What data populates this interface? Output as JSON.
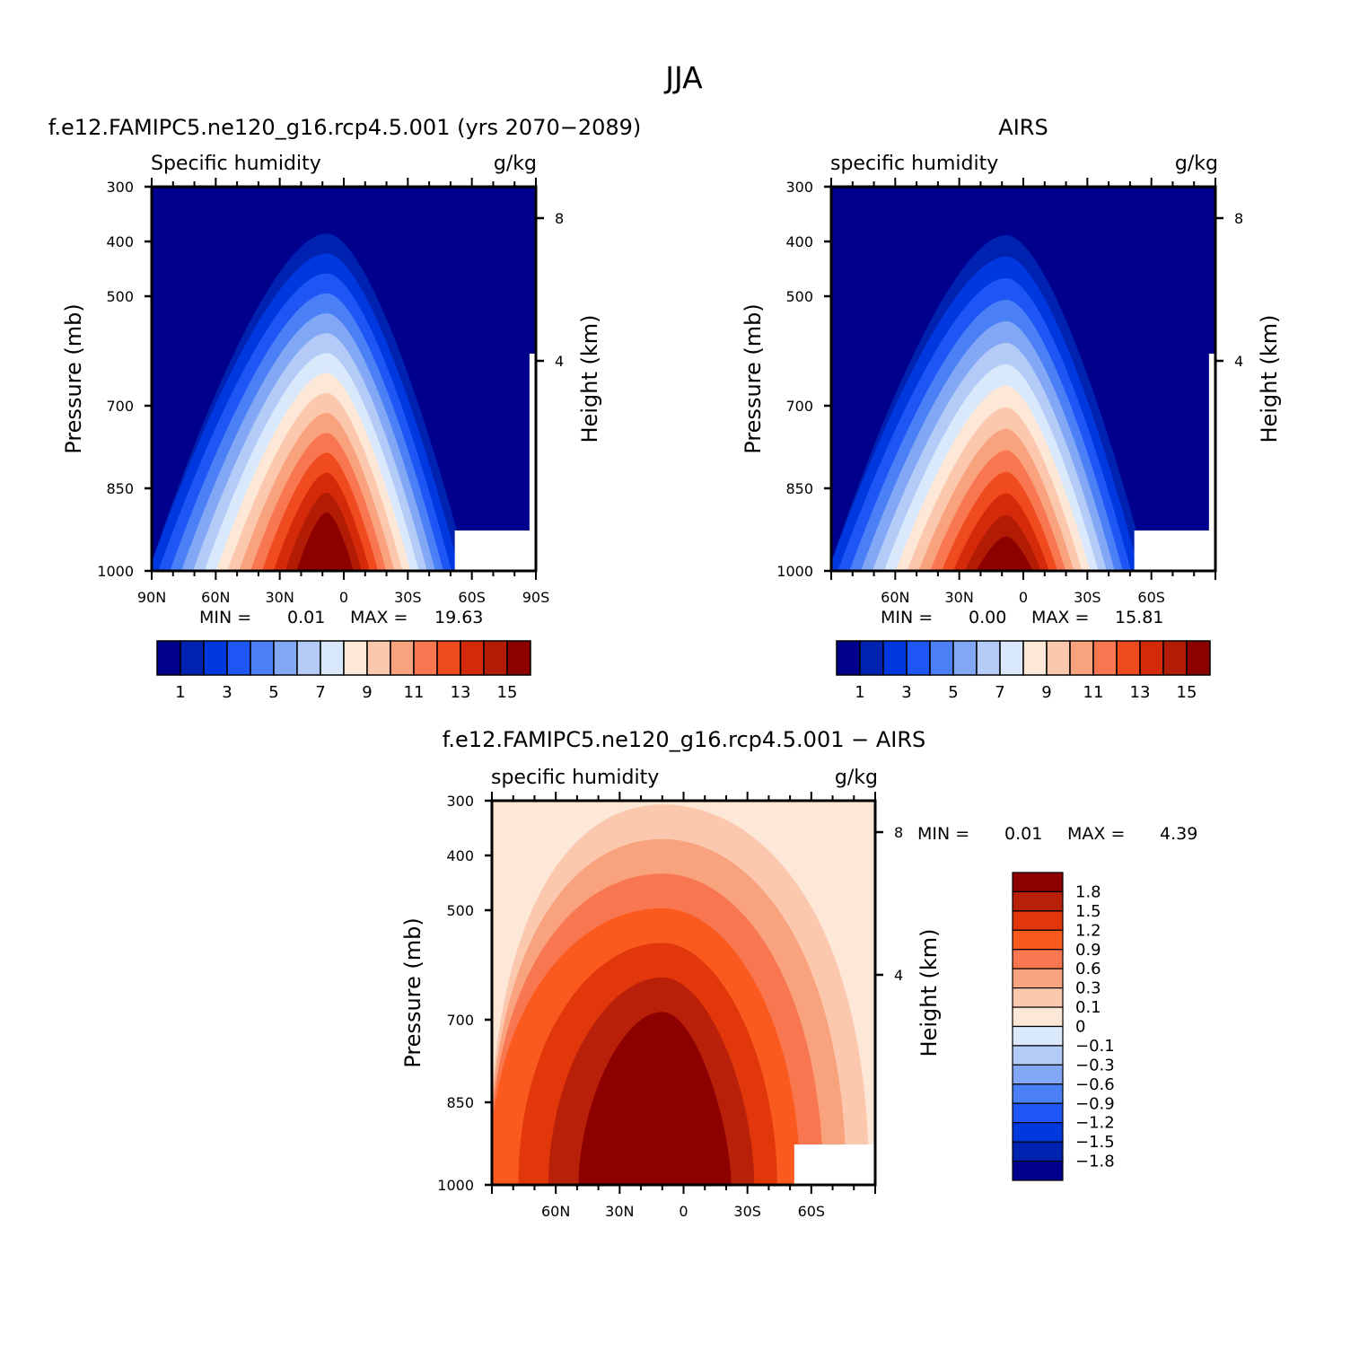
{
  "figure": {
    "title": "JJA"
  },
  "panels": {
    "model": {
      "title": "f.e12.FAMIPC5.ne120_g16.rcp4.5.001 (yrs 2070−2089)",
      "left_label": "Specific humidity",
      "units": "g/kg",
      "stats": {
        "min_label": "MIN =",
        "min": "0.01",
        "max_label": "MAX =",
        "max": "19.63"
      }
    },
    "obs": {
      "title": "AIRS",
      "left_label": "specific humidity",
      "units": "g/kg",
      "stats": {
        "min_label": "MIN =",
        "min": "0.00",
        "max_label": "MAX =",
        "max": "15.81"
      }
    },
    "diff": {
      "title": "f.e12.FAMIPC5.ne120_g16.rcp4.5.001 − AIRS",
      "left_label": "specific humidity",
      "units": "g/kg",
      "stats": {
        "min_label": "MIN =",
        "min": "0.01",
        "max_label": "MAX =",
        "max": "4.39"
      }
    }
  },
  "colors": {
    "mean_palette": [
      "#00008c",
      "#0022b0",
      "#0038e0",
      "#1e55f5",
      "#4a7ff5",
      "#82a8f5",
      "#b4caf7",
      "#dae8fb",
      "#fde7d6",
      "#fbc8ae",
      "#f9a27e",
      "#f87650",
      "#ef4b1f",
      "#d42a0a",
      "#b21b04",
      "#8c0000"
    ],
    "diff_palette": [
      "#00008c",
      "#0022b0",
      "#0038e0",
      "#1e55f5",
      "#4a7ff5",
      "#82a8f5",
      "#b4caf7",
      "#dae8fb",
      "#fde7d6",
      "#fbc8ae",
      "#f9a27e",
      "#f87650",
      "#fa5a1e",
      "#e2370a",
      "#b8200a",
      "#8c0000"
    ]
  },
  "chart_data": [
    {
      "type": "heatmap",
      "panel": "model",
      "title": "f.e12.FAMIPC5.ne120_g16.rcp4.5.001 (yrs 2070−2089)",
      "xlabel": "",
      "ylabel": "Pressure (mb)",
      "right_label": "Height (km)",
      "x_ticks": [
        "90N",
        "60N",
        "30N",
        "0",
        "30S",
        "60S",
        "90S"
      ],
      "y_ticks": [
        "300",
        "400",
        "500",
        "700",
        "850",
        "1000"
      ],
      "right_ticks": [
        "8",
        "4"
      ],
      "colorbar_ticks": [
        "1",
        "3",
        "5",
        "7",
        "9",
        "11",
        "13",
        "15"
      ],
      "min": 0.01,
      "max": 19.63,
      "peak_latitude": 8,
      "peak_value_near_surface": 19.63
    },
    {
      "type": "heatmap",
      "panel": "obs",
      "title": "AIRS",
      "xlabel": "",
      "ylabel": "Pressure (mb)",
      "right_label": "Height (km)",
      "x_ticks": [
        "60N",
        "30N",
        "0",
        "30S",
        "60S"
      ],
      "y_ticks": [
        "300",
        "400",
        "500",
        "700",
        "850",
        "1000"
      ],
      "right_ticks": [
        "8",
        "4"
      ],
      "colorbar_ticks": [
        "1",
        "3",
        "5",
        "7",
        "9",
        "11",
        "13",
        "15"
      ],
      "min": 0.0,
      "max": 15.81,
      "peak_latitude": 8,
      "peak_value_near_surface": 15.81
    },
    {
      "type": "heatmap",
      "panel": "diff",
      "title": "f.e12.FAMIPC5.ne120_g16.rcp4.5.001 − AIRS",
      "xlabel": "",
      "ylabel": "Pressure (mb)",
      "right_label": "Height (km)",
      "x_ticks": [
        "60N",
        "30N",
        "0",
        "30S",
        "60S"
      ],
      "y_ticks": [
        "300",
        "400",
        "500",
        "700",
        "850",
        "1000"
      ],
      "right_ticks": [
        "8",
        "4"
      ],
      "colorbar_ticks": [
        "1.8",
        "1.5",
        "1.2",
        "0.9",
        "0.6",
        "0.3",
        "0.1",
        "0",
        "−0.1",
        "−0.3",
        "−0.6",
        "−0.9",
        "−1.2",
        "−1.5",
        "−1.8"
      ],
      "min": 0.01,
      "max": 4.39
    }
  ]
}
